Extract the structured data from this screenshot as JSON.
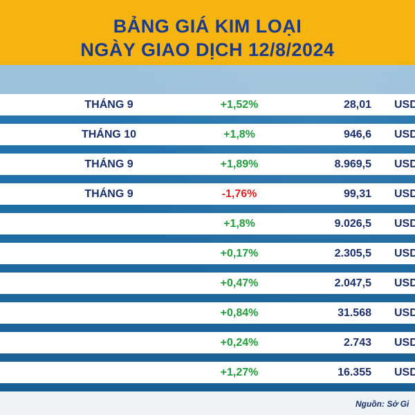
{
  "header": {
    "title_line1": "BẢNG GIÁ KIM LOẠI",
    "title_line2": "NGÀY GIAO DỊCH 12/8/2024"
  },
  "rows": [
    {
      "month": "THÁNG 9",
      "change": "+1,52%",
      "price": "28,01",
      "unit": "USD",
      "direction": "up"
    },
    {
      "month": "THÁNG 10",
      "change": "+1,8%",
      "price": "946,6",
      "unit": "USD",
      "direction": "up"
    },
    {
      "month": "THÁNG 9",
      "change": "+1,89%",
      "price": "8.969,5",
      "unit": "USD",
      "direction": "up"
    },
    {
      "month": "THÁNG 9",
      "change": "-1,76%",
      "price": "99,31",
      "unit": "USD",
      "direction": "down"
    },
    {
      "month": "",
      "change": "+1,8%",
      "price": "9.026,5",
      "unit": "USD",
      "direction": "up"
    },
    {
      "month": "",
      "change": "+0,17%",
      "price": "2.305,5",
      "unit": "USD",
      "direction": "up"
    },
    {
      "month": "",
      "change": "+0,47%",
      "price": "2.047,5",
      "unit": "USD",
      "direction": "up"
    },
    {
      "month": "",
      "change": "+0,84%",
      "price": "31.568",
      "unit": "USD",
      "direction": "up"
    },
    {
      "month": "",
      "change": "+0,24%",
      "price": "2.743",
      "unit": "USD",
      "direction": "up"
    },
    {
      "month": "",
      "change": "+1,27%",
      "price": "16.355",
      "unit": "USD",
      "direction": "up"
    }
  ],
  "footer": {
    "source": "Nguồn: Sở Gi"
  },
  "colors": {
    "header_bg": "#f6b411",
    "title_text": "#1a3a8c",
    "up": "#1f9e3a",
    "down": "#e02020"
  }
}
